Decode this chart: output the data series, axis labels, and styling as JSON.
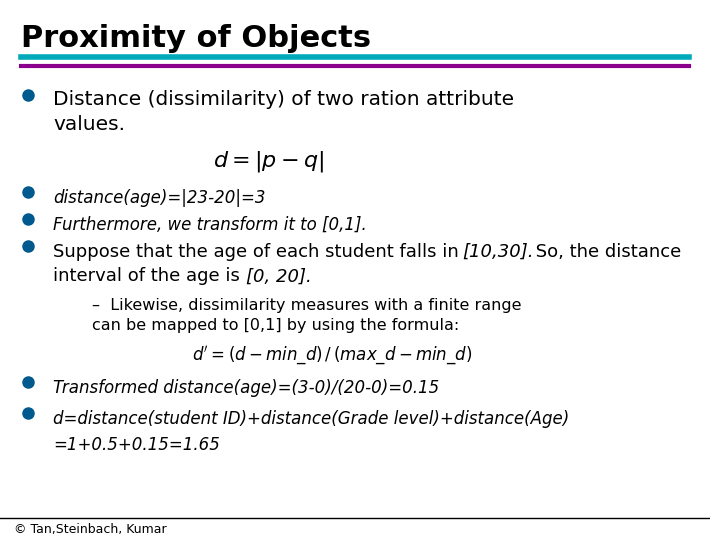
{
  "title": "Proximity of Objects",
  "title_color": "#000000",
  "title_fontsize": 22,
  "bar1_color": "#00AABB",
  "bar2_color": "#8B008B",
  "background_color": "#FFFFFF",
  "bullet_color": "#005A8E",
  "bullet1_text": "Distance (dissimilarity) of two ration attribute\nvalues.",
  "bullet1_fontsize": 14.5,
  "formula1": "$d = |p - q|$",
  "formula1_fontsize": 16,
  "bullet2_text": "distance(age)=|23-20|=3",
  "bullet2_fontsize": 12,
  "bullet3_text": "Furthermore, we transform it to [0,1].",
  "bullet3_fontsize": 12,
  "bullet4_fontsize": 13,
  "sub_bullet_text": "Likewise, dissimilarity measures with a finite range\ncan be mapped to [0,1] by using the formula:",
  "sub_bullet_fontsize": 11.5,
  "formula2": "$d' = (d - min\\_d)\\,/\\,(max\\_d - min\\_d)$",
  "formula2_fontsize": 12,
  "bullet5_text": "Transformed distance(age)=(3-0)/(20-0)=0.15",
  "bullet5_fontsize": 12,
  "bullet6_text": "d=distance(student ID)+distance(Grade level)+distance(Age)",
  "bullet6_fontsize": 12,
  "bullet6b_text": "=1+0.5+0.15=1.65",
  "footer_text": "© Tan,Steinbach, Kumar",
  "footer_fontsize": 9
}
